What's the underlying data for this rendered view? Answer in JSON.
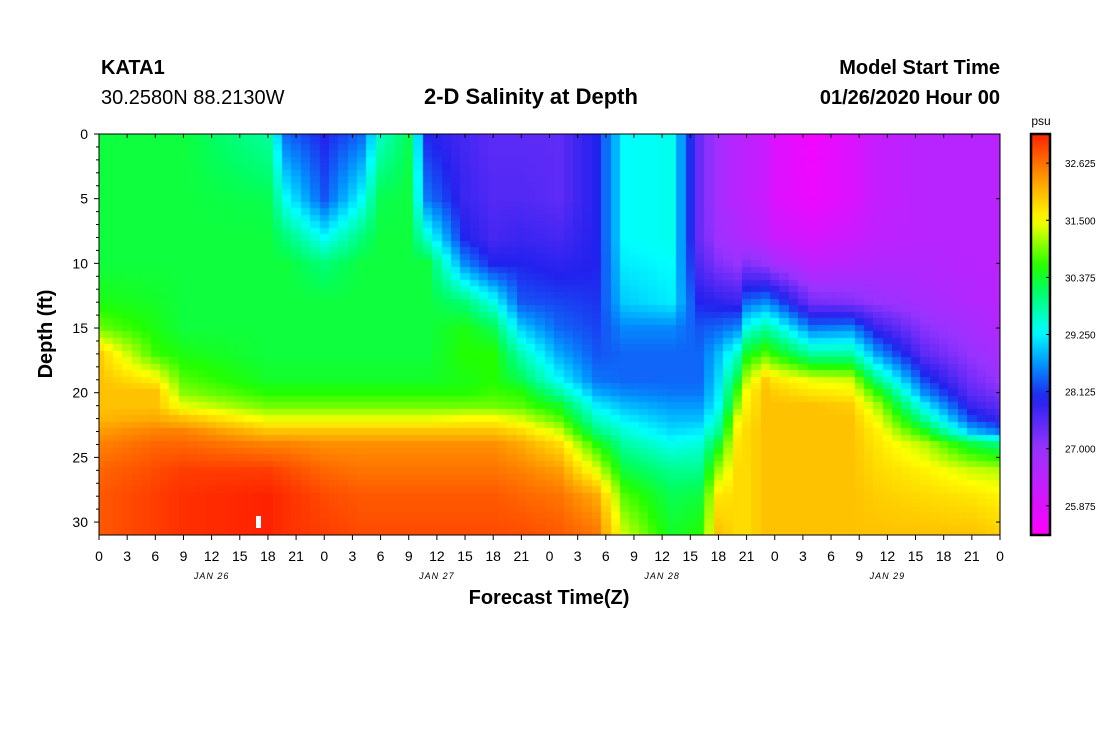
{
  "header": {
    "station_id": "KATA1",
    "station_coords": "30.2580N 88.2130W",
    "title": "2-D Salinity at Depth",
    "start_label": "Model Start Time",
    "start_value": "01/26/2020 Hour 00"
  },
  "chart_data": {
    "type": "heatmap",
    "title": "2-D Salinity at Depth",
    "xlabel": "Forecast Time(Z)",
    "ylabel": "Depth (ft)",
    "x_range_hours": [
      0,
      96
    ],
    "x_tick_labels": [
      "0",
      "3",
      "6",
      "9",
      "12",
      "15",
      "18",
      "21",
      "0",
      "3",
      "6",
      "9",
      "12",
      "15",
      "18",
      "21",
      "0",
      "3",
      "6",
      "9",
      "12",
      "15",
      "18",
      "21",
      "0",
      "3",
      "6",
      "9",
      "12",
      "15",
      "18",
      "21",
      "0"
    ],
    "date_labels": [
      "JAN 26",
      "JAN 27",
      "JAN 28",
      "JAN 29"
    ],
    "y_range_ft": [
      0,
      31
    ],
    "y_reversed": true,
    "y_tick_labels": [
      "0",
      "5",
      "10",
      "15",
      "20",
      "25",
      "30"
    ],
    "colorbar": {
      "unit": "psu",
      "min": 25.3,
      "max": 33.2,
      "tick_labels": [
        "32.625",
        "31.500",
        "30.375",
        "29.250",
        "28.125",
        "27.000",
        "25.875"
      ],
      "tick_values": [
        32.625,
        31.5,
        30.375,
        29.25,
        28.125,
        27.0,
        25.875
      ],
      "colors": [
        [
          25.3,
          "#ff00ff"
        ],
        [
          27.0,
          "#9933ff"
        ],
        [
          28.0,
          "#2222ee"
        ],
        [
          28.7,
          "#0099ff"
        ],
        [
          29.3,
          "#00ffff"
        ],
        [
          30.1,
          "#00ff66"
        ],
        [
          30.6,
          "#22ff00"
        ],
        [
          31.5,
          "#ffff00"
        ],
        [
          32.2,
          "#ffaa00"
        ],
        [
          33.2,
          "#ff2200"
        ]
      ]
    },
    "salinity_field": {
      "depth_ft": [
        0,
        5,
        8,
        10,
        13,
        15,
        17,
        19,
        20,
        21,
        22,
        23,
        24,
        26,
        28,
        31
      ],
      "columns": [
        {
          "hour": 0,
          "values": [
            30.3,
            30.3,
            30.3,
            30.3,
            30.5,
            30.9,
            31.9,
            32.0,
            32.0,
            32.0,
            32.1,
            32.3,
            32.5,
            32.7,
            32.8,
            32.8
          ]
        },
        {
          "hour": 6,
          "values": [
            30.3,
            30.3,
            30.3,
            30.3,
            30.4,
            30.5,
            30.7,
            31.6,
            32.0,
            32.0,
            32.2,
            32.5,
            32.7,
            32.9,
            33.0,
            33.0
          ]
        },
        {
          "hour": 9,
          "values": [
            30.3,
            30.3,
            30.3,
            30.3,
            30.3,
            30.3,
            30.5,
            30.8,
            31.0,
            31.4,
            32.0,
            32.5,
            32.7,
            33.0,
            33.1,
            33.1
          ]
        },
        {
          "hour": 18,
          "values": [
            29.8,
            30.2,
            30.3,
            30.3,
            30.3,
            30.3,
            30.3,
            30.4,
            30.6,
            30.9,
            31.4,
            32.0,
            32.5,
            33.0,
            33.2,
            33.2
          ]
        },
        {
          "hour": 20,
          "values": [
            28.4,
            29.3,
            30.0,
            30.3,
            30.3,
            30.3,
            30.3,
            30.4,
            30.6,
            30.9,
            31.4,
            32.0,
            32.5,
            32.9,
            33.1,
            33.1
          ]
        },
        {
          "hour": 24,
          "values": [
            28.0,
            28.3,
            29.3,
            30.0,
            30.3,
            30.3,
            30.3,
            30.4,
            30.6,
            30.9,
            31.4,
            32.0,
            32.4,
            32.7,
            32.9,
            33.0
          ]
        },
        {
          "hour": 28,
          "values": [
            28.4,
            29.3,
            30.0,
            30.3,
            30.3,
            30.3,
            30.3,
            30.4,
            30.6,
            30.9,
            31.4,
            32.0,
            32.4,
            32.6,
            32.8,
            32.9
          ]
        },
        {
          "hour": 30,
          "values": [
            29.6,
            30.2,
            30.3,
            30.3,
            30.3,
            30.3,
            30.3,
            30.4,
            30.6,
            30.9,
            31.4,
            32.0,
            32.4,
            32.6,
            32.8,
            32.9
          ]
        },
        {
          "hour": 33,
          "values": [
            30.2,
            30.3,
            30.3,
            30.3,
            30.3,
            30.3,
            30.3,
            30.4,
            30.6,
            30.9,
            31.4,
            32.0,
            32.4,
            32.6,
            32.8,
            32.9
          ]
        },
        {
          "hour": 35,
          "values": [
            28.0,
            28.5,
            29.5,
            30.3,
            30.3,
            30.3,
            30.3,
            30.4,
            30.6,
            30.9,
            31.4,
            32.0,
            32.4,
            32.6,
            32.8,
            32.9
          ]
        },
        {
          "hour": 39,
          "values": [
            27.7,
            27.8,
            28.0,
            28.6,
            30.0,
            30.5,
            30.6,
            30.5,
            30.6,
            30.9,
            31.5,
            32.0,
            32.4,
            32.6,
            32.8,
            32.9
          ]
        },
        {
          "hour": 42,
          "values": [
            27.5,
            27.6,
            27.7,
            28.0,
            29.4,
            30.2,
            30.6,
            30.6,
            30.7,
            30.9,
            31.5,
            32.0,
            32.4,
            32.6,
            32.8,
            32.9
          ]
        },
        {
          "hour": 45,
          "values": [
            27.5,
            27.6,
            27.8,
            28.0,
            28.3,
            29.0,
            29.7,
            30.2,
            30.6,
            30.8,
            31.3,
            31.8,
            32.2,
            32.5,
            32.7,
            32.9
          ]
        },
        {
          "hour": 49,
          "values": [
            27.5,
            27.5,
            27.7,
            27.9,
            28.2,
            28.4,
            28.8,
            29.3,
            29.8,
            30.4,
            30.8,
            31.3,
            31.8,
            32.3,
            32.6,
            32.8
          ]
        },
        {
          "hour": 53,
          "values": [
            28.0,
            28.0,
            28.0,
            28.0,
            28.1,
            28.2,
            28.3,
            28.5,
            28.8,
            29.2,
            29.6,
            30.0,
            30.6,
            31.4,
            32.2,
            32.6
          ]
        },
        {
          "hour": 56,
          "values": [
            29.3,
            29.3,
            29.3,
            29.2,
            29.0,
            28.6,
            28.4,
            28.4,
            28.6,
            28.9,
            29.2,
            29.5,
            29.8,
            30.3,
            30.8,
            31.3
          ]
        },
        {
          "hour": 61,
          "values": [
            29.4,
            29.4,
            29.4,
            29.3,
            29.2,
            28.6,
            28.4,
            28.4,
            28.5,
            28.7,
            28.9,
            29.1,
            29.4,
            29.9,
            30.2,
            30.4
          ]
        },
        {
          "hour": 64,
          "values": [
            27.4,
            27.4,
            27.4,
            27.6,
            28.0,
            28.3,
            28.4,
            28.4,
            28.5,
            28.7,
            28.9,
            29.2,
            29.5,
            29.9,
            30.3,
            30.6
          ]
        },
        {
          "hour": 66,
          "values": [
            26.8,
            26.8,
            26.9,
            27.2,
            27.9,
            28.4,
            28.9,
            29.1,
            29.2,
            29.3,
            29.6,
            29.9,
            30.4,
            31.1,
            31.7,
            32.0
          ]
        },
        {
          "hour": 68,
          "values": [
            26.5,
            26.5,
            26.7,
            27.0,
            27.8,
            28.6,
            29.6,
            30.3,
            30.7,
            31.0,
            31.4,
            31.6,
            31.7,
            31.8,
            31.8,
            31.8
          ]
        },
        {
          "hour": 69,
          "values": [
            26.4,
            26.4,
            26.6,
            27.2,
            28.4,
            29.4,
            30.4,
            31.2,
            31.5,
            31.6,
            31.7,
            31.8,
            31.8,
            31.8,
            31.8,
            31.8
          ]
        },
        {
          "hour": 71,
          "values": [
            26.2,
            26.2,
            26.4,
            27.0,
            28.6,
            29.8,
            30.8,
            31.9,
            32.0,
            32.0,
            32.0,
            32.0,
            32.0,
            32.0,
            32.0,
            32.0
          ]
        },
        {
          "hour": 72,
          "values": [
            25.9,
            25.9,
            26.2,
            26.8,
            28.4,
            29.6,
            30.6,
            31.7,
            31.9,
            32.0,
            32.0,
            32.0,
            32.0,
            32.0,
            32.0,
            32.0
          ]
        },
        {
          "hour": 76,
          "values": [
            25.5,
            25.6,
            26.0,
            26.4,
            27.3,
            28.5,
            29.8,
            31.4,
            31.7,
            32.0,
            32.0,
            32.0,
            32.0,
            32.0,
            32.0,
            32.0
          ]
        },
        {
          "hour": 80,
          "values": [
            25.9,
            25.9,
            26.2,
            26.5,
            27.2,
            28.6,
            29.8,
            31.3,
            31.6,
            31.9,
            32.0,
            32.0,
            32.0,
            32.0,
            32.0,
            32.0
          ]
        },
        {
          "hour": 83,
          "values": [
            26.3,
            26.3,
            26.4,
            26.6,
            27.0,
            27.8,
            28.7,
            29.9,
            30.6,
            31.1,
            31.4,
            31.6,
            31.7,
            31.8,
            31.9,
            32.0
          ]
        },
        {
          "hour": 88,
          "values": [
            26.5,
            26.5,
            26.5,
            26.6,
            26.8,
            27.1,
            27.5,
            28.2,
            28.6,
            29.2,
            29.8,
            30.5,
            31.2,
            31.6,
            31.8,
            32.0
          ]
        },
        {
          "hour": 93,
          "values": [
            26.5,
            26.5,
            26.5,
            26.5,
            26.6,
            26.8,
            27.0,
            27.3,
            27.5,
            27.8,
            28.2,
            28.9,
            30.3,
            31.3,
            31.7,
            32.0
          ]
        },
        {
          "hour": 96,
          "values": [
            26.5,
            26.5,
            26.5,
            26.5,
            26.5,
            26.6,
            26.8,
            27.0,
            27.2,
            27.5,
            27.8,
            28.5,
            30.0,
            31.2,
            31.6,
            31.9
          ]
        }
      ]
    }
  }
}
